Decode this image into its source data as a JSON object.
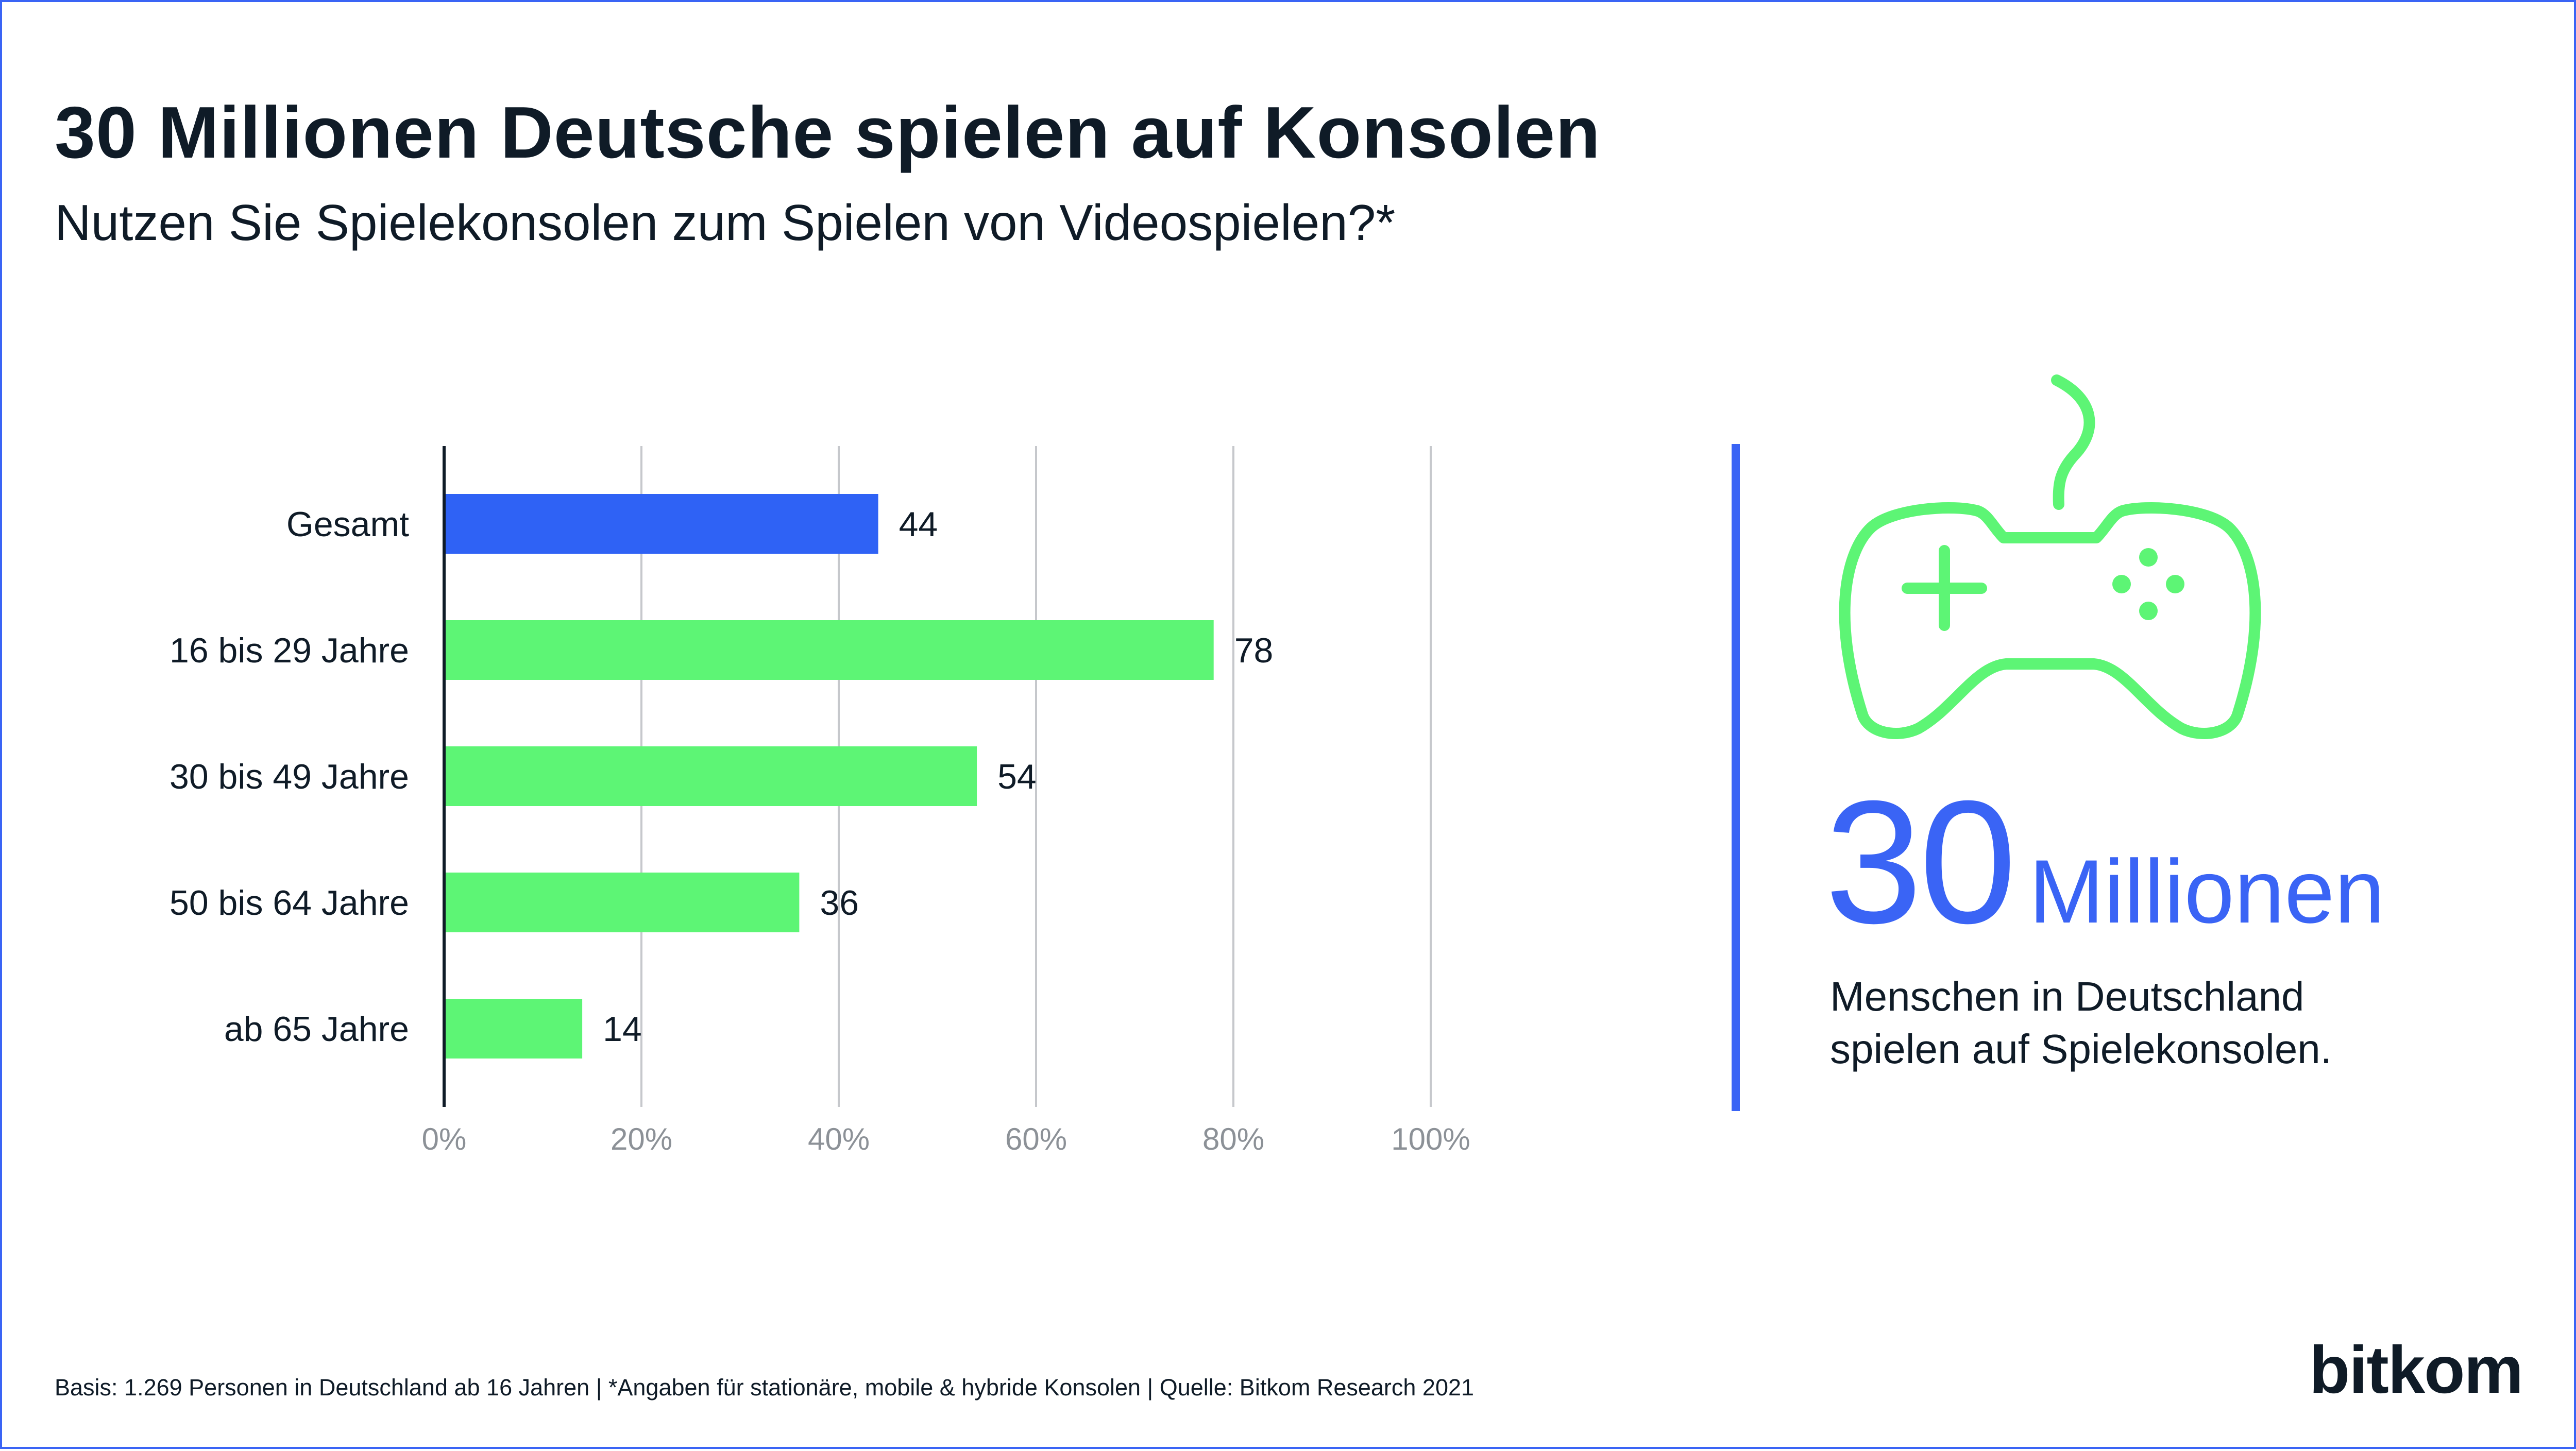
{
  "title": "30 Millionen Deutsche spielen auf Konsolen",
  "subtitle": "Nutzen Sie Spielekonsolen zum Spielen von Videospielen?*",
  "chart_data": {
    "type": "bar",
    "orientation": "horizontal",
    "categories": [
      "Gesamt",
      "16 bis 29 Jahre",
      "30 bis 49 Jahre",
      "50 bis 64 Jahre",
      "ab 65 Jahre"
    ],
    "values": [
      44,
      78,
      54,
      36,
      14
    ],
    "value_labels": [
      "44",
      "78",
      "54",
      "36",
      "14"
    ],
    "xlim": [
      0,
      100
    ],
    "x_ticks": [
      "0%",
      "20%",
      "40%",
      "60%",
      "80%",
      "100%"
    ],
    "grid": true,
    "colors": [
      "#2f62f5",
      "#5df575",
      "#5df575",
      "#5df575",
      "#5df575"
    ]
  },
  "kpi": {
    "number": "30",
    "unit": "Millionen",
    "line1": "Menschen in Deutschland",
    "line2": "spielen auf Spielekonsolen."
  },
  "icons": {
    "gamepad": "gamepad-icon"
  },
  "footer": "Basis: 1.269 Personen in Deutschland ab 16 Jahren | *Angaben für stationäre, mobile & hybride Konsolen | Quelle: Bitkom Research 2021",
  "logo": "bitkom",
  "colors": {
    "accent_blue": "#3a64f5",
    "accent_green": "#5df575",
    "text": "#0f1b27",
    "grid": "#c6c8cc"
  }
}
